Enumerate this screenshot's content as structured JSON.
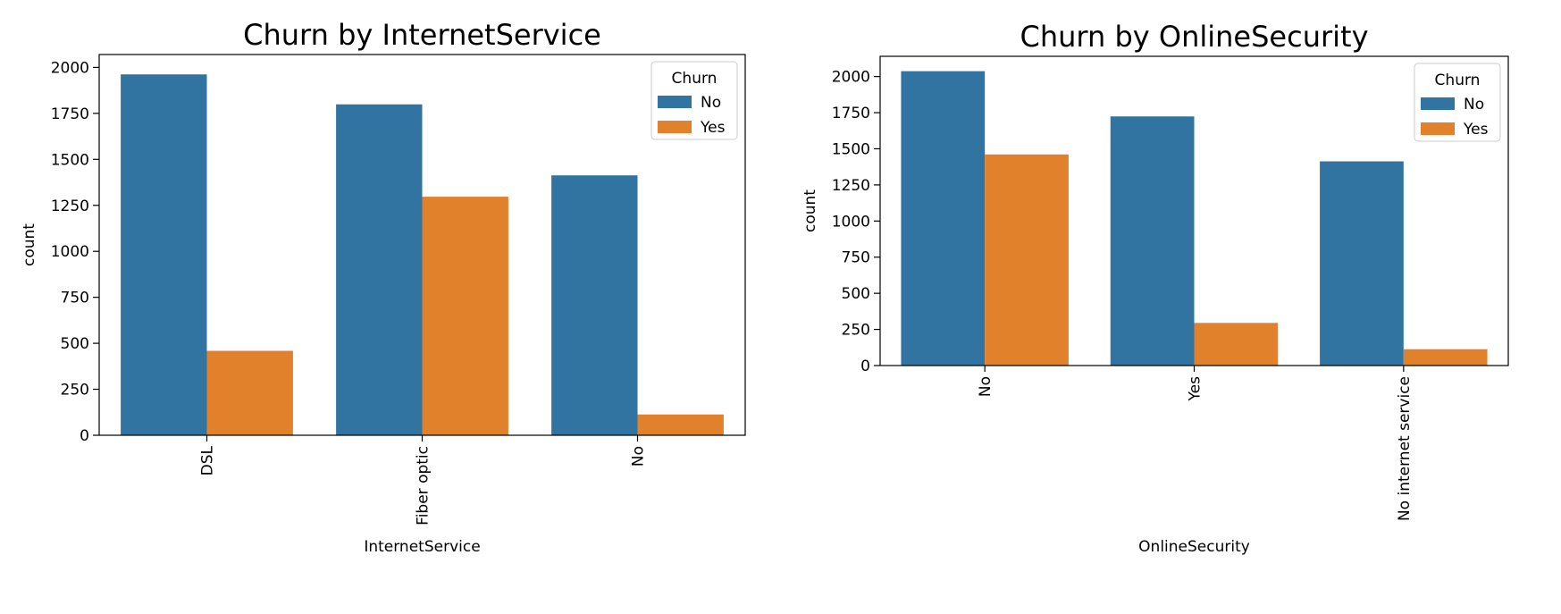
{
  "colors": {
    "No": "#3274a1",
    "Yes": "#e1812c"
  },
  "chart_data": [
    {
      "type": "bar",
      "title": "Churn by InternetService",
      "xlabel": "InternetService",
      "ylabel": "count",
      "categories": [
        "DSL",
        "Fiber optic",
        "No"
      ],
      "series": [
        {
          "name": "No",
          "values": [
            1962,
            1799,
            1413
          ]
        },
        {
          "name": "Yes",
          "values": [
            459,
            1297,
            113
          ]
        }
      ],
      "ylim": [
        0,
        2070
      ],
      "yticks": [
        0,
        250,
        500,
        750,
        1000,
        1250,
        1500,
        1750,
        2000
      ],
      "legend": {
        "title": "Churn",
        "placement": "top-right"
      },
      "grid": false
    },
    {
      "type": "bar",
      "title": "Churn by OnlineSecurity",
      "xlabel": "OnlineSecurity",
      "ylabel": "count",
      "categories": [
        "No",
        "Yes",
        "No internet service"
      ],
      "series": [
        {
          "name": "No",
          "values": [
            2037,
            1724,
            1413
          ]
        },
        {
          "name": "Yes",
          "values": [
            1461,
            295,
            113
          ]
        }
      ],
      "ylim": [
        0,
        2140
      ],
      "yticks": [
        0,
        250,
        500,
        750,
        1000,
        1250,
        1500,
        1750,
        2000
      ],
      "legend": {
        "title": "Churn",
        "placement": "top-right"
      },
      "grid": false
    }
  ]
}
